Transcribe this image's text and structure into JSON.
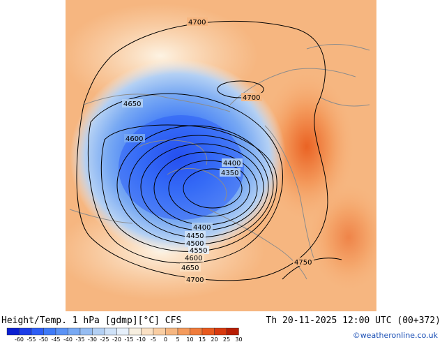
{
  "title_left": "Height/Temp. 1 hPa [gdmp][°C] CFS",
  "title_right": "Th 20-11-2025 12:00 UTC (00+372)",
  "credit": "©weatheronline.co.uk",
  "contour_labels": [
    "4700",
    "4700",
    "4650",
    "4600",
    "4400",
    "4350",
    "4400",
    "4450",
    "4500",
    "4550",
    "4600",
    "4650",
    "4700",
    "4750"
  ],
  "colorbar": {
    "ticks": [
      "-60",
      "-55",
      "-50",
      "-45",
      "-40",
      "-35",
      "-30",
      "-25",
      "-20",
      "-15",
      "-10",
      "-5",
      "0",
      "5",
      "10",
      "15",
      "20",
      "25",
      "30"
    ],
    "colors": [
      "#0a1fd0",
      "#1c3ee8",
      "#2e5ef5",
      "#3f7af7",
      "#5a92f5",
      "#78a9f3",
      "#96bdf2",
      "#b3d0f4",
      "#cfe2f8",
      "#e6f0fb",
      "#f7efe0",
      "#fbe1c4",
      "#f9cda2",
      "#f6b680",
      "#f49b5d",
      "#f07c3c",
      "#e85a1f",
      "#d83a0f",
      "#b81e05"
    ]
  },
  "colors": {
    "cold": "#2e5ef5",
    "warm": "#f07c3c",
    "land_outline": "#8c8c8c"
  }
}
